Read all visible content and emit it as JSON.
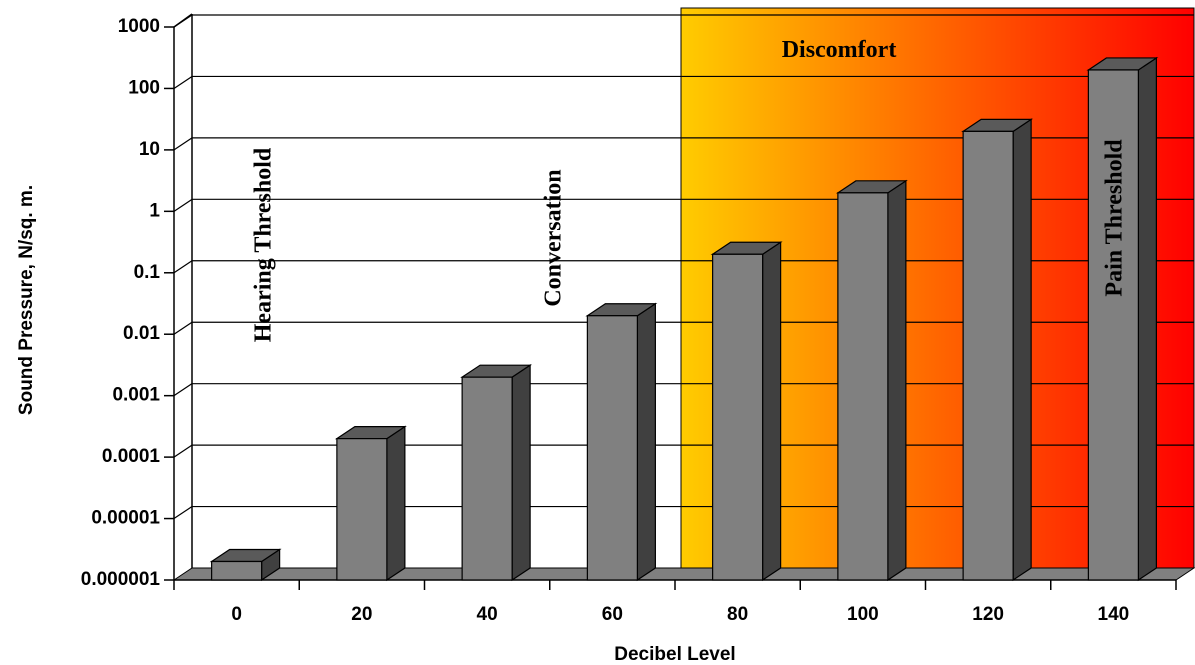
{
  "chart_data": {
    "type": "bar",
    "style": "3d",
    "categories": [
      "0",
      "20",
      "40",
      "60",
      "80",
      "100",
      "120",
      "140"
    ],
    "values": [
      2e-06,
      0.0002,
      0.002,
      0.02,
      0.2,
      2,
      20,
      200
    ],
    "xlabel": "Decibel Level",
    "ylabel": "Sound Pressure, N/sq. m.",
    "yscale": "log",
    "ylim": [
      1e-06,
      1000
    ],
    "yticks": [
      "0.000001",
      "0.00001",
      "0.0001",
      "0.001",
      "0.01",
      "0.1",
      "1",
      "10",
      "100",
      "1000"
    ],
    "grid": true,
    "bar_color": "#808080",
    "annotations": {
      "hearing": "Hearing Threshold",
      "conversation": "Conversation",
      "discomfort": "Discomfort",
      "pain": "Pain Threshold"
    },
    "discomfort_region": {
      "from_category": "80",
      "gradient": [
        "#ffcc00",
        "#ff0000"
      ]
    }
  }
}
